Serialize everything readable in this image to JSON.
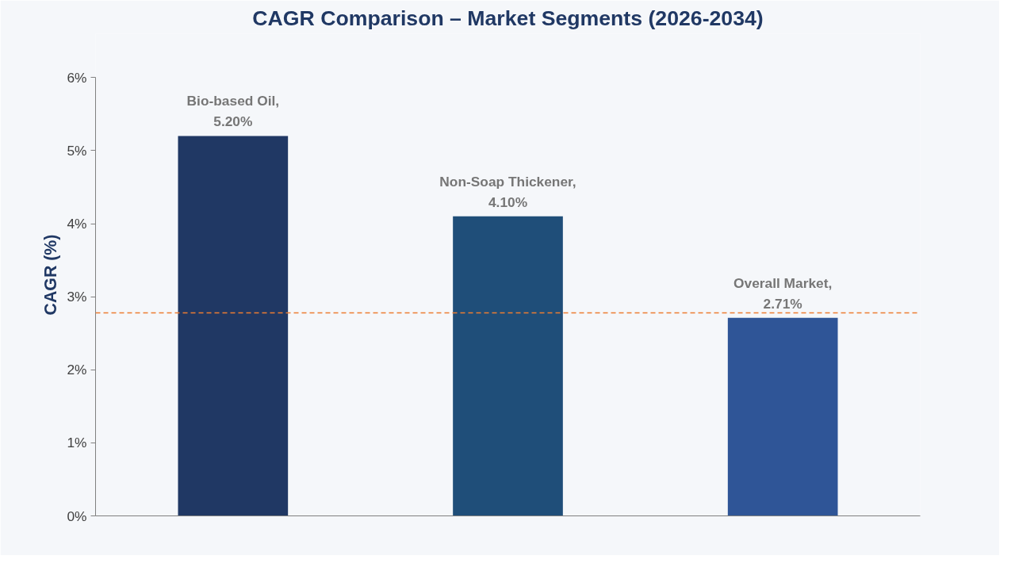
{
  "chart_data": {
    "type": "bar",
    "title": "CAGR Comparison – Market Segments (2026-2034)",
    "ylabel": "CAGR (%)",
    "categories": [
      null,
      null,
      null
    ],
    "values": [
      5.2,
      4.1,
      2.71
    ],
    "colors": [
      "#203864",
      "#1f4e79",
      "#2f5597"
    ],
    "value_labels": [
      "Bio-based Oil,\n5.20%",
      "Non-Soap Thickener,\n4.10%",
      "Overall Market,\n2.71%"
    ],
    "ylim": [
      0,
      6
    ],
    "yticks": [
      {
        "value": 0,
        "label": "0%"
      },
      {
        "value": 1,
        "label": "1%"
      },
      {
        "value": 2,
        "label": "2%"
      },
      {
        "value": 3,
        "label": "3%"
      },
      {
        "value": 4,
        "label": "4%"
      },
      {
        "value": 5,
        "label": "5%"
      },
      {
        "value": 6,
        "label": "6%"
      }
    ],
    "ref_lines": [
      {
        "axis": "y",
        "value": 2.78,
        "color": "#ed7d31",
        "line_style": "dashed"
      }
    ],
    "tick_labels": "y",
    "grid": false
  }
}
